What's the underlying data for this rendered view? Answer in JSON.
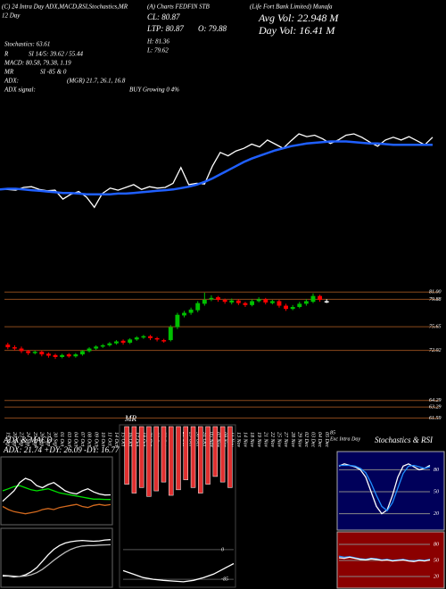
{
  "header": {
    "line1": "(C) 24 Intra Day ADX,MACD,RSI,Stochastics,MR",
    "symbol": "(A) Charts FEDFIN STB",
    "company": "(Life Fort Bank Limited) Munafa",
    "day": "12 Day",
    "cl": "CL: 80.87",
    "ltp": "LTP: 80.87",
    "open": "O: 79.88",
    "high": "H: 81.36",
    "low": "L: 79.62",
    "avg_vol": "Avg Vol: 22.948  M",
    "day_vol": "Day Vol: 16.41  M",
    "stochastics": "Stochastics: 63.61",
    "rsi_label": "R",
    "rsi_values": "SI 14/5: 39.62 / 55.44",
    "macd": "MACD: 80.58, 79.38, 1.19",
    "mr_label": "MR",
    "mr_values": "SI -85 & 0",
    "adx_label": "ADX:",
    "adx_values": "(MGR) 21.7, 26.1, 16.8",
    "adx_signal_label": "ADX  signal:",
    "adx_signal_values": "BUY Growing 0 4%",
    "exc_value": "85",
    "exc": "Exc Intra Day"
  },
  "chart_data": [
    {
      "type": "line",
      "ylim": [
        69,
        82
      ],
      "series": [
        {
          "name": "Price",
          "color": "#ffffff",
          "values": [
            72.6,
            72.6,
            72.5,
            72.9,
            73.0,
            72.6,
            72.4,
            72.5,
            71.2,
            71.9,
            72.3,
            71.5,
            70.0,
            72.0,
            72.8,
            72.5,
            72.9,
            73.3,
            72.6,
            73.0,
            72.8,
            72.9,
            73.5,
            75.8,
            73.3,
            73.5,
            73.4,
            76.0,
            78.0,
            77.5,
            78.2,
            78.6,
            79.2,
            78.8,
            79.8,
            79.2,
            78.6,
            79.7,
            80.7,
            80.3,
            80.5,
            80.0,
            79.3,
            79.8,
            80.5,
            80.7,
            80.2,
            79.5,
            78.9,
            79.8,
            80.2,
            79.8,
            80.3,
            79.7,
            79.1,
            80.2
          ]
        },
        {
          "name": "MA",
          "color": "#1f5fff",
          "values": [
            72.6,
            72.7,
            72.7,
            72.6,
            72.5,
            72.4,
            72.3,
            72.2,
            72.1,
            72.1,
            72.0,
            71.9,
            71.9,
            71.9,
            71.9,
            72.0,
            72.0,
            72.1,
            72.2,
            72.3,
            72.4,
            72.5,
            72.6,
            72.8,
            73.0,
            73.3,
            73.7,
            74.2,
            74.8,
            75.4,
            76.0,
            76.6,
            77.1,
            77.5,
            77.9,
            78.3,
            78.6,
            78.9,
            79.1,
            79.3,
            79.4,
            79.5,
            79.6,
            79.6,
            79.6,
            79.5,
            79.4,
            79.3,
            79.3,
            79.2,
            79.1,
            79.1,
            79.1,
            79.1,
            79.1,
            79.1
          ]
        }
      ]
    },
    {
      "type": "candlestick",
      "ylim": [
        60,
        82
      ],
      "grid": true,
      "grid_color": "#8b4a1c",
      "up_color": "#00c000",
      "down_color": "#ff0000",
      "flat_color": "#ffffff",
      "categories": [
        "19 Sep",
        "20 Sep",
        "23 Sep",
        "24 Sep",
        "25 Sep",
        "26 Sep",
        "27 Sep",
        "30 Sep",
        "01 Oct",
        "03 Oct",
        "04 Oct",
        "07 Oct",
        "08 Oct",
        "09 Oct",
        "10 Oct",
        "11 Oct",
        "14 Oct",
        "15 Oct",
        "16 Oct",
        "17 Oct",
        "18 Oct",
        "21 Oct",
        "22 Oct",
        "23 Oct",
        "24 Oct",
        "25 Oct",
        "28 Oct",
        "29 Oct",
        "30 Oct",
        "31 Oct",
        "05 Nov",
        "07 Nov",
        "08 Nov",
        "11 Nov",
        "13 Nov",
        "14 Nov",
        "18 Nov",
        "19 Nov",
        "21 Nov",
        "22 Nov",
        "25 Nov",
        "27 Nov",
        "28 Nov",
        "29 Nov",
        "02 Dec",
        "03 Dec",
        "04 Dec",
        "05 Dec"
      ],
      "open": [
        72.9,
        72.5,
        72.3,
        71.9,
        71.6,
        71.8,
        71.5,
        71.3,
        71.0,
        71.4,
        71.1,
        71.4,
        71.9,
        72.3,
        72.6,
        72.8,
        73.1,
        73.5,
        73.2,
        73.7,
        74.0,
        74.2,
        73.9,
        73.6,
        73.6,
        75.6,
        77.4,
        77.8,
        78.2,
        79.2,
        79.9,
        80.2,
        79.8,
        79.4,
        79.7,
        79.3,
        79.0,
        79.6,
        79.9,
        79.3,
        79.6,
        78.9,
        78.4,
        78.7,
        79.2,
        79.5,
        80.4,
        79.6
      ],
      "high": [
        73.2,
        72.8,
        72.6,
        72.1,
        72.0,
        72.0,
        71.7,
        71.5,
        71.5,
        71.6,
        71.6,
        72.1,
        72.5,
        72.8,
        73.0,
        73.3,
        73.6,
        73.7,
        73.9,
        74.2,
        74.4,
        74.4,
        74.1,
        73.8,
        75.9,
        77.8,
        78.1,
        78.6,
        79.6,
        80.9,
        80.5,
        80.4,
        80.0,
        80.0,
        79.9,
        79.5,
        79.9,
        80.2,
        80.1,
        79.8,
        79.8,
        79.2,
        79.0,
        79.5,
        79.9,
        80.8,
        80.6,
        79.9
      ],
      "low": [
        72.2,
        72.0,
        71.6,
        71.3,
        71.4,
        71.1,
        70.9,
        70.7,
        70.8,
        70.9,
        70.9,
        71.2,
        71.7,
        72.1,
        72.4,
        72.6,
        72.9,
        72.9,
        73.0,
        73.5,
        73.8,
        73.6,
        73.4,
        73.2,
        73.4,
        75.3,
        77.1,
        77.5,
        77.9,
        78.9,
        79.6,
        79.5,
        79.2,
        79.1,
        79.0,
        78.7,
        78.8,
        79.4,
        79.1,
        79.1,
        78.6,
        78.1,
        78.2,
        78.5,
        78.9,
        79.3,
        79.5,
        79.3
      ],
      "close": [
        72.5,
        72.3,
        71.9,
        71.6,
        71.8,
        71.4,
        71.2,
        71.0,
        71.3,
        71.1,
        71.4,
        71.9,
        72.3,
        72.6,
        72.8,
        73.1,
        73.4,
        73.2,
        73.7,
        74.0,
        74.2,
        73.9,
        73.7,
        73.5,
        75.6,
        77.5,
        77.8,
        78.3,
        79.3,
        79.8,
        80.1,
        79.8,
        79.5,
        79.7,
        79.3,
        79.0,
        79.6,
        79.9,
        79.4,
        79.6,
        78.9,
        78.4,
        78.7,
        79.2,
        79.6,
        80.4,
        79.8,
        79.6
      ],
      "yticks": [
        {
          "value": 81,
          "label": "81.00"
        },
        79.88,
        75.65,
        72.02,
        64.29,
        63.29,
        61.59
      ]
    },
    {
      "type": "line",
      "title": "ADX & MACD",
      "subtitle": "ADX: 21.74 +DY: 26.09 -DY: 16.77",
      "ylim": [
        0,
        60
      ],
      "series": [
        {
          "name": "ADX",
          "color": "#00e000",
          "values": [
            30,
            32,
            34,
            35,
            33,
            31,
            30,
            31,
            32,
            30,
            28,
            27,
            26,
            25,
            24,
            23,
            22,
            22,
            21.8,
            21.7
          ]
        },
        {
          "name": "+DI",
          "color": "#ffffff",
          "values": [
            20,
            25,
            30,
            38,
            42,
            40,
            35,
            33,
            36,
            38,
            34,
            30,
            28,
            27,
            30,
            32,
            29,
            27,
            26,
            26.1
          ]
        },
        {
          "name": "-DI",
          "color": "#d2691e",
          "values": [
            15,
            12,
            10,
            9,
            8,
            9,
            10,
            12,
            13,
            12,
            14,
            15,
            16,
            17,
            15,
            14,
            16,
            17,
            16,
            16.8
          ]
        }
      ]
    },
    {
      "type": "line",
      "ylim": [
        70,
        82
      ],
      "series": [
        {
          "name": "MACD",
          "color": "#ffffff",
          "values": [
            72,
            72,
            71.8,
            71.9,
            72.3,
            73,
            74,
            75.5,
            77,
            78.3,
            79.2,
            79.8,
            80.1,
            80.3,
            80.4,
            80.3,
            80.2,
            80.3,
            80.5,
            80.58
          ]
        },
        {
          "name": "Signal",
          "color": "#bbbbbb",
          "values": [
            72.2,
            72.1,
            72,
            71.9,
            72,
            72.3,
            72.8,
            73.6,
            74.6,
            75.7,
            76.7,
            77.6,
            78.3,
            78.8,
            79.1,
            79.2,
            79.2,
            79.3,
            79.35,
            79.38
          ]
        }
      ]
    },
    {
      "type": "bar",
      "title": "MR",
      "color": "#e03030",
      "ylim": [
        -70,
        0
      ],
      "values": [
        -52,
        -60,
        -55,
        -63,
        -58,
        -50,
        -62,
        -57,
        -48,
        -55,
        -60,
        -52,
        -45,
        -50,
        -55
      ]
    },
    {
      "type": "line",
      "ylim": [
        -100,
        10
      ],
      "yticks": [
        -85,
        0
      ],
      "grid": true,
      "grid_color": "#555555",
      "series": [
        {
          "name": "MR",
          "color": "#ffffff",
          "values": [
            -60,
            -70,
            -80,
            -85,
            -88,
            -90,
            -92,
            -88,
            -80,
            -70,
            -55,
            -40
          ]
        }
      ]
    },
    {
      "type": "line",
      "title": "Stochastics & RSI",
      "ylim": [
        0,
        100
      ],
      "yticks": [
        80,
        50,
        20
      ],
      "grid": true,
      "grid_color": "#888888",
      "series": [
        {
          "name": "%K",
          "color": "#ffffff",
          "values": [
            85,
            88,
            86,
            84,
            80,
            70,
            50,
            30,
            20,
            25,
            45,
            70,
            85,
            88,
            84,
            80,
            82,
            86
          ]
        },
        {
          "name": "%D",
          "color": "#1f8fff",
          "values": [
            86,
            86,
            86,
            85,
            82,
            76,
            62,
            45,
            30,
            24,
            35,
            55,
            75,
            85,
            86,
            84,
            82,
            84
          ]
        }
      ]
    },
    {
      "type": "line",
      "ylim": [
        0,
        100
      ],
      "yticks": [
        80,
        50,
        20
      ],
      "grid": true,
      "grid_color": "#888888",
      "series": [
        {
          "name": "RSI",
          "color": "#1f8fff",
          "values": [
            58,
            56,
            57,
            55,
            53,
            52,
            54,
            53,
            51,
            52,
            50,
            51,
            52,
            50,
            49,
            51,
            50,
            52
          ]
        },
        {
          "name": "RSI signal",
          "color": "#ffffff",
          "values": [
            55,
            54,
            56,
            54,
            52,
            51,
            53,
            52,
            50,
            51,
            49,
            50,
            51,
            49,
            48,
            50,
            49,
            51
          ]
        }
      ]
    }
  ]
}
